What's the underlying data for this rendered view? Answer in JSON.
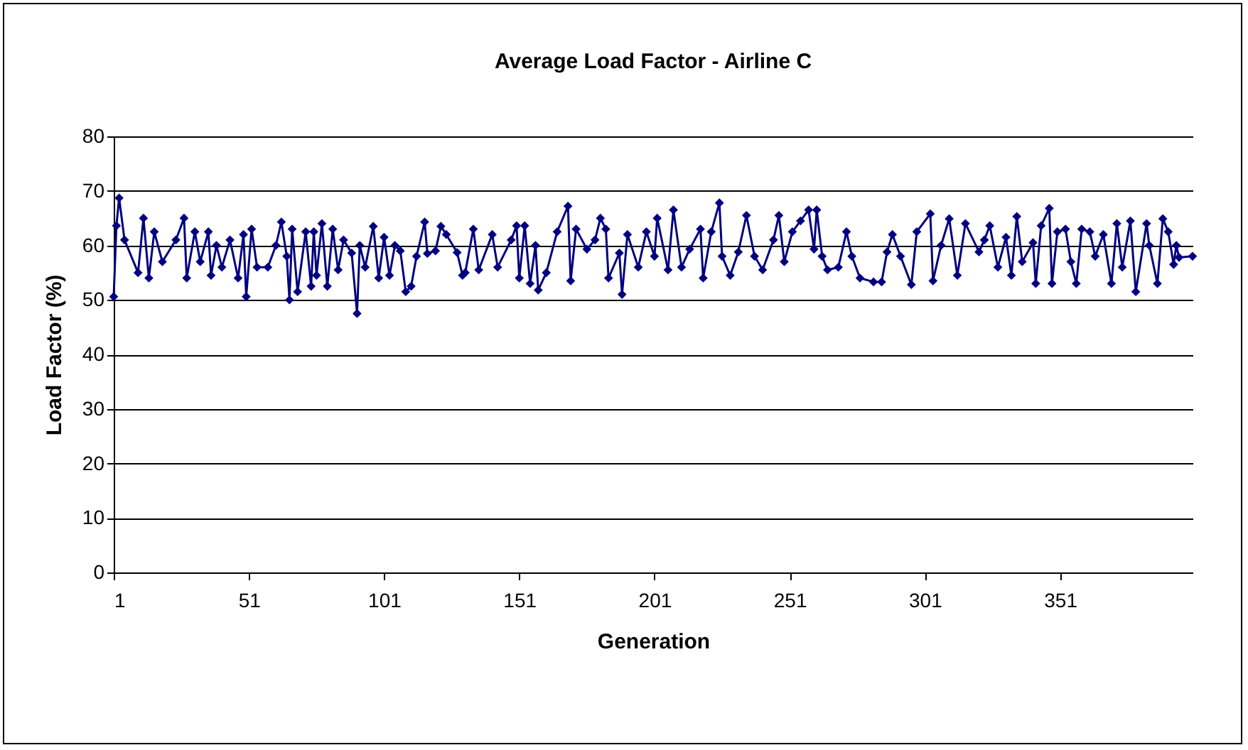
{
  "chart_data": {
    "type": "line",
    "title": "Average Load Factor - Airline C",
    "xlabel": "Generation",
    "ylabel": "Load Factor (%)",
    "x": [
      1,
      2,
      3,
      5,
      10,
      12,
      14,
      16,
      19,
      24,
      27,
      28,
      31,
      33,
      36,
      37,
      39,
      41,
      44,
      47,
      49,
      50,
      52,
      54,
      58,
      61,
      63,
      65,
      66,
      67,
      69,
      72,
      74,
      75,
      76,
      78,
      80,
      82,
      84,
      86,
      89,
      91,
      92,
      94,
      97,
      99,
      101,
      103,
      105,
      107,
      109,
      111,
      113,
      116,
      117,
      120,
      122,
      124,
      128,
      130,
      131,
      134,
      136,
      141,
      143,
      148,
      150,
      151,
      153,
      155,
      157,
      158,
      161,
      165,
      169,
      170,
      172,
      176,
      179,
      181,
      183,
      184,
      188,
      189,
      191,
      195,
      198,
      201,
      202,
      206,
      208,
      211,
      214,
      218,
      219,
      222,
      225,
      226,
      229,
      232,
      235,
      238,
      241,
      245,
      247,
      249,
      252,
      255,
      258,
      260,
      261,
      263,
      265,
      269,
      272,
      274,
      277,
      282,
      285,
      287,
      289,
      292,
      296,
      298,
      303,
      304,
      307,
      310,
      313,
      316,
      321,
      323,
      325,
      328,
      331,
      333,
      335,
      337,
      341,
      342,
      344,
      347,
      348,
      350,
      353,
      355,
      357,
      359,
      362,
      364,
      367,
      370,
      372,
      374,
      377,
      379,
      383,
      384,
      387,
      389,
      391,
      393,
      394,
      395,
      400
    ],
    "series": [
      {
        "color": "#000080",
        "values": [
          50.6,
          63.6,
          68.7,
          61,
          55,
          65,
          54,
          62.5,
          57,
          61,
          65,
          54,
          62.5,
          57,
          62.5,
          54.5,
          60,
          56,
          61,
          54,
          62,
          50.6,
          63,
          56,
          56,
          60,
          64.3,
          58,
          50,
          63,
          51.5,
          62.5,
          52.5,
          62.5,
          54.5,
          64,
          52.5,
          63,
          55.5,
          61,
          58.6,
          47.5,
          60,
          56,
          63.5,
          54,
          61.5,
          54.5,
          60,
          59,
          51.5,
          52.5,
          58,
          64.3,
          58.5,
          59,
          63.5,
          62,
          58.7,
          54.5,
          55,
          63,
          55.5,
          62,
          56,
          61,
          63.6,
          54,
          63.6,
          53,
          60,
          51.8,
          55,
          62.5,
          67.2,
          53.5,
          63,
          59.3,
          61,
          65,
          63,
          54,
          58.6,
          51,
          62,
          56,
          62.5,
          58,
          65,
          55.5,
          66.5,
          56,
          59.3,
          63,
          54,
          62.5,
          67.8,
          58,
          54.5,
          58.8,
          65.5,
          58,
          55.5,
          61,
          65.5,
          57,
          62.5,
          64.5,
          66.5,
          59.3,
          66.5,
          58,
          55.5,
          56,
          62.5,
          58,
          54,
          53.3,
          53.3,
          58.8,
          62,
          58,
          52.8,
          62.5,
          65.8,
          53.5,
          60,
          64.9,
          54.5,
          64,
          58.8,
          61,
          63.6,
          56,
          61.5,
          54.5,
          65.3,
          57,
          60.5,
          53,
          63.6,
          66.8,
          53,
          62.5,
          63,
          57,
          53,
          63,
          62.5,
          58,
          62,
          53,
          64,
          56,
          64.5,
          51.5,
          64,
          60,
          53,
          64.9,
          62.5,
          56.5,
          60,
          57.8,
          58
        ]
      }
    ],
    "xlim": [
      1,
      400
    ],
    "xticks": [
      1,
      51,
      101,
      151,
      201,
      251,
      301,
      351
    ],
    "ylim": [
      0,
      80
    ],
    "yticks": [
      0,
      10,
      20,
      30,
      40,
      50,
      60,
      70,
      80
    ],
    "grid": "y",
    "marker": "diamond",
    "legend": false
  }
}
